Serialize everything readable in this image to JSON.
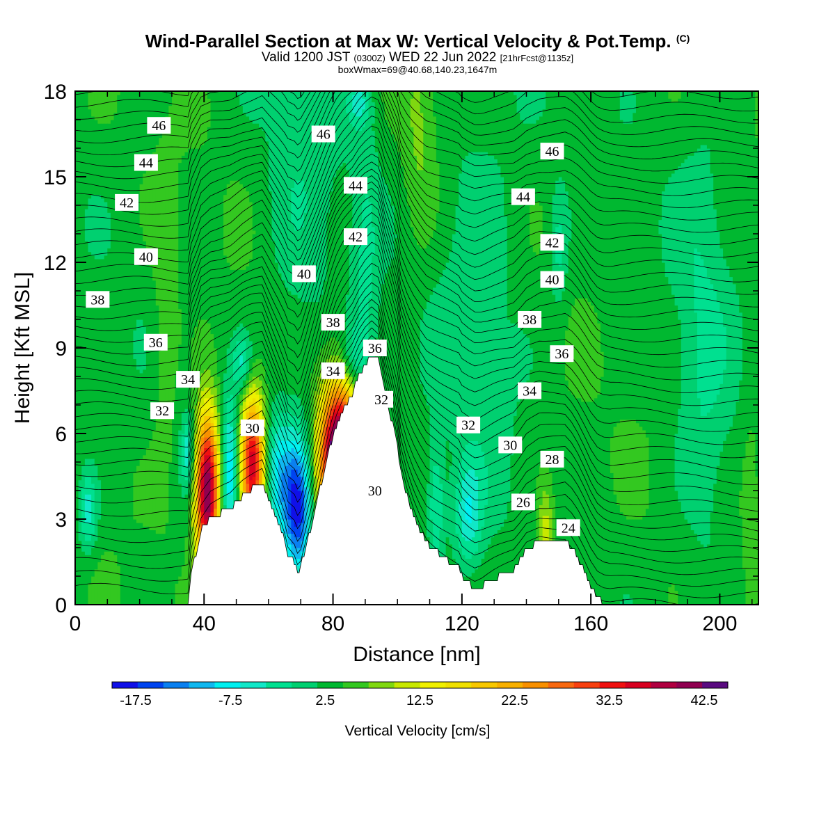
{
  "header": {
    "title": "Wind-Parallel Section at Max W: Vertical Velocity & Pot.Temp.",
    "copyright": "(C)",
    "valid_prefix": "Valid 1200 JST",
    "valid_zulu": "(0300Z)",
    "valid_date": "WED 22 Jun 2022",
    "forecast_info": "[21hrFcst@1135z]",
    "subtitle2": "boxWmax=69@40.68,140.23,1647m"
  },
  "chart_data": {
    "type": "heatmap",
    "xlabel": "Distance [nm]",
    "ylabel": "Height [Kft MSL]",
    "xlim": [
      0,
      212
    ],
    "ylim": [
      0,
      18
    ],
    "x_ticks": [
      0,
      40,
      80,
      120,
      160,
      200
    ],
    "y_ticks": [
      0,
      3,
      6,
      9,
      12,
      15,
      18
    ],
    "colorbar": {
      "title": "Vertical Velocity [cm/s]",
      "levels": [
        -20,
        -17.5,
        -15,
        -12.5,
        -10,
        -7.5,
        -5,
        -2.5,
        0,
        2.5,
        5,
        7.5,
        10,
        12.5,
        15,
        17.5,
        20,
        22.5,
        25,
        27.5,
        30,
        32.5,
        35,
        37.5,
        40,
        42.5,
        45
      ],
      "labels": [
        "-17.5",
        "-7.5",
        "2.5",
        "12.5",
        "22.5",
        "32.5",
        "42.5"
      ],
      "label_values": [
        -17.5,
        -7.5,
        2.5,
        12.5,
        22.5,
        32.5,
        42.5
      ],
      "colors": [
        "#1010e8",
        "#0044f0",
        "#0a80f0",
        "#10b8f0",
        "#00f0f0",
        "#10e8c8",
        "#00e090",
        "#00d070",
        "#00b830",
        "#33c820",
        "#80d810",
        "#c8e800",
        "#f0f000",
        "#f0e000",
        "#f8c800",
        "#f8b000",
        "#f89000",
        "#f86810",
        "#f84010",
        "#f01010",
        "#d80020",
        "#b00040",
        "#900050",
        "#5a0a80"
      ]
    },
    "background_w": 1.5,
    "updrafts": [
      {
        "x": 41,
        "z": 4.0,
        "peak": 38,
        "sx": 2.6,
        "sz": 1.9
      },
      {
        "x": 55,
        "z": 4.9,
        "peak": 30,
        "sx": 2.6,
        "sz": 1.7
      },
      {
        "x": 82,
        "z": 5.0,
        "peak": 45,
        "sx": 4.2,
        "sz": 1.9
      },
      {
        "x": 100,
        "z": 2.3,
        "peak": 10,
        "sx": 2.0,
        "sz": 0.8
      },
      {
        "x": 146,
        "z": 2.3,
        "peak": 8,
        "sx": 1.8,
        "sz": 1.3
      },
      {
        "x": 77,
        "z": 1.4,
        "peak": 6,
        "sx": 1.5,
        "sz": 1.0
      },
      {
        "x": 28,
        "z": 9.5,
        "peak": 3,
        "sx": 3.0,
        "sz": 4.0
      },
      {
        "x": 107,
        "z": 16.5,
        "peak": 4,
        "sx": 4.0,
        "sz": 3.0
      },
      {
        "x": 210,
        "z": 4.0,
        "peak": 2.5,
        "sx": 2.5,
        "sz": 3.0
      }
    ],
    "downdrafts": [
      {
        "x": 48,
        "z": 4.6,
        "peak": -12,
        "sx": 2.0,
        "sz": 1.8
      },
      {
        "x": 69,
        "z": 3.4,
        "peak": -19,
        "sx": 3.0,
        "sz": 1.7
      },
      {
        "x": 63,
        "z": 4.6,
        "peak": -9,
        "sx": 2.8,
        "sz": 1.5
      },
      {
        "x": 35,
        "z": 5.3,
        "peak": -8,
        "sx": 1.5,
        "sz": 0.9
      },
      {
        "x": 4,
        "z": 3.3,
        "peak": -8,
        "sx": 2.0,
        "sz": 1.0
      },
      {
        "x": 122,
        "z": 3.2,
        "peak": -8,
        "sx": 3.0,
        "sz": 1.3
      },
      {
        "x": 112,
        "z": 3.5,
        "peak": -7,
        "sx": 1.8,
        "sz": 1.5
      },
      {
        "x": 52,
        "z": 8.5,
        "peak": -7,
        "sx": 2.0,
        "sz": 0.7
      },
      {
        "x": 86,
        "z": 8.6,
        "peak": -6,
        "sx": 2.8,
        "sz": 0.8
      },
      {
        "x": 88,
        "z": 17.6,
        "peak": -6,
        "sx": 2.5,
        "sz": 0.6
      },
      {
        "x": 150,
        "z": 12.5,
        "peak": -5,
        "sx": 2.0,
        "sz": 1.5
      },
      {
        "x": 90,
        "z": 11.0,
        "peak": -4,
        "sx": 3.0,
        "sz": 4.5
      },
      {
        "x": 195,
        "z": 8.5,
        "peak": -4,
        "sx": 6.0,
        "sz": 6.0
      },
      {
        "x": 125,
        "z": 12.0,
        "peak": -3,
        "sx": 10.0,
        "sz": 6.0
      },
      {
        "x": 70,
        "z": 14.0,
        "peak": -3,
        "sx": 8.0,
        "sz": 5.0
      }
    ],
    "terrain": {
      "x": [
        0,
        35,
        36,
        38,
        39,
        42,
        48,
        52,
        58,
        61,
        63,
        65,
        66,
        68,
        69,
        70,
        71,
        73,
        75,
        77,
        79,
        81,
        83,
        86,
        88,
        90,
        92,
        94,
        95,
        96,
        98,
        100,
        101,
        103,
        105,
        107,
        109,
        113,
        119,
        120,
        122,
        124,
        126,
        128,
        130,
        136,
        138,
        140,
        144,
        152,
        154,
        156,
        158,
        160,
        162,
        164,
        166,
        168,
        212
      ],
      "z_m": [
        0,
        0,
        330,
        620,
        790,
        930,
        1020,
        1160,
        1320,
        1050,
        880,
        680,
        540,
        460,
        360,
        400,
        540,
        810,
        1090,
        1390,
        1680,
        1920,
        2080,
        2260,
        2440,
        2570,
        2660,
        2610,
        2470,
        2270,
        2000,
        1700,
        1420,
        1160,
        960,
        800,
        660,
        540,
        390,
        300,
        230,
        180,
        200,
        240,
        280,
        380,
        480,
        590,
        680,
        700,
        620,
        500,
        350,
        190,
        70,
        20,
        0,
        0,
        0
      ],
      "note_units": "m"
    },
    "theta_contours": {
      "levels_labeled": [
        24,
        26,
        28,
        30,
        32,
        34,
        36,
        38,
        40,
        42,
        44,
        46
      ],
      "labels": [
        {
          "text": "46",
          "x": 26,
          "z": 16.8
        },
        {
          "text": "44",
          "x": 22,
          "z": 15.5
        },
        {
          "text": "42",
          "x": 16,
          "z": 14.1
        },
        {
          "text": "40",
          "x": 22,
          "z": 12.2
        },
        {
          "text": "38",
          "x": 7,
          "z": 10.7
        },
        {
          "text": "36",
          "x": 25,
          "z": 9.2
        },
        {
          "text": "34",
          "x": 35,
          "z": 7.9
        },
        {
          "text": "32",
          "x": 27,
          "z": 6.8
        },
        {
          "text": "30",
          "x": 55,
          "z": 6.2
        },
        {
          "text": "46",
          "x": 77,
          "z": 16.5
        },
        {
          "text": "44",
          "x": 87,
          "z": 14.7
        },
        {
          "text": "42",
          "x": 87,
          "z": 12.9
        },
        {
          "text": "40",
          "x": 71,
          "z": 11.6
        },
        {
          "text": "38",
          "x": 80,
          "z": 9.9
        },
        {
          "text": "36",
          "x": 93,
          "z": 9.0
        },
        {
          "text": "34",
          "x": 80,
          "z": 8.2
        },
        {
          "text": "32",
          "x": 95,
          "z": 7.2
        },
        {
          "text": "30",
          "x": 93,
          "z": 4.0
        },
        {
          "text": "32",
          "x": 122,
          "z": 6.3
        },
        {
          "text": "30",
          "x": 135,
          "z": 5.6
        },
        {
          "text": "28",
          "x": 148,
          "z": 5.1
        },
        {
          "text": "26",
          "x": 139,
          "z": 3.6
        },
        {
          "text": "24",
          "x": 153,
          "z": 2.7
        },
        {
          "text": "34",
          "x": 141,
          "z": 7.5
        },
        {
          "text": "36",
          "x": 151,
          "z": 8.8
        },
        {
          "text": "38",
          "x": 141,
          "z": 10.0
        },
        {
          "text": "40",
          "x": 148,
          "z": 11.4
        },
        {
          "text": "42",
          "x": 148,
          "z": 12.7
        },
        {
          "text": "44",
          "x": 139,
          "z": 14.3
        },
        {
          "text": "46",
          "x": 148,
          "z": 15.9
        }
      ]
    }
  }
}
